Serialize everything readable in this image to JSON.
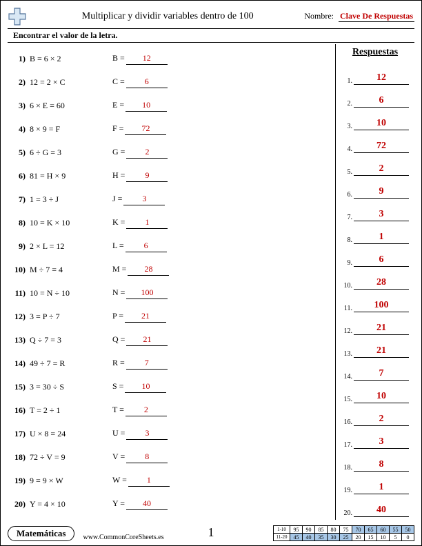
{
  "header": {
    "title": "Multiplicar y dividir variables dentro de 100",
    "name_label": "Nombre:",
    "answer_key": "Clave De Respuestas"
  },
  "instruction": "Encontrar el valor de la letra.",
  "answers_title": "Respuestas",
  "problems": [
    {
      "n": "1)",
      "eq": "B = 6 × 2",
      "var": "B =",
      "ans": "12"
    },
    {
      "n": "2)",
      "eq": "12 = 2 × C",
      "var": "C =",
      "ans": "6"
    },
    {
      "n": "3)",
      "eq": "6 × E = 60",
      "var": "E =",
      "ans": "10"
    },
    {
      "n": "4)",
      "eq": "8 × 9 = F",
      "var": "F =",
      "ans": "72"
    },
    {
      "n": "5)",
      "eq": "6 ÷ G = 3",
      "var": "G =",
      "ans": "2"
    },
    {
      "n": "6)",
      "eq": "81 = H × 9",
      "var": "H =",
      "ans": "9"
    },
    {
      "n": "7)",
      "eq": "1 = 3 ÷ J",
      "var": "J =",
      "ans": "3"
    },
    {
      "n": "8)",
      "eq": "10 = K × 10",
      "var": "K =",
      "ans": "1"
    },
    {
      "n": "9)",
      "eq": "2 × L = 12",
      "var": "L =",
      "ans": "6"
    },
    {
      "n": "10)",
      "eq": "M ÷ 7 = 4",
      "var": "M =",
      "ans": "28"
    },
    {
      "n": "11)",
      "eq": "10 = N ÷ 10",
      "var": "N =",
      "ans": "100"
    },
    {
      "n": "12)",
      "eq": "3 = P ÷ 7",
      "var": "P =",
      "ans": "21"
    },
    {
      "n": "13)",
      "eq": "Q ÷ 7 = 3",
      "var": "Q =",
      "ans": "21"
    },
    {
      "n": "14)",
      "eq": "49 ÷ 7 = R",
      "var": "R =",
      "ans": "7"
    },
    {
      "n": "15)",
      "eq": "3 = 30 ÷ S",
      "var": "S =",
      "ans": "10"
    },
    {
      "n": "16)",
      "eq": "T = 2 ÷ 1",
      "var": "T =",
      "ans": "2"
    },
    {
      "n": "17)",
      "eq": "U × 8 = 24",
      "var": "U =",
      "ans": "3"
    },
    {
      "n": "18)",
      "eq": "72 ÷ V = 9",
      "var": "V =",
      "ans": "8"
    },
    {
      "n": "19)",
      "eq": "9 = 9 × W",
      "var": "W =",
      "ans": "1"
    },
    {
      "n": "20)",
      "eq": "Y = 4 × 10",
      "var": "Y =",
      "ans": "40"
    }
  ],
  "footer": {
    "subject": "Matemáticas",
    "url": "www.CommonCoreSheets.es",
    "page_num": "1",
    "grid": {
      "row1_label": "1-10",
      "row2_label": "11-20",
      "row1": [
        "95",
        "90",
        "85",
        "80",
        "75",
        "70",
        "65",
        "60",
        "55",
        "50"
      ],
      "row2": [
        "45",
        "40",
        "35",
        "30",
        "25",
        "20",
        "15",
        "10",
        "5",
        "0"
      ]
    }
  }
}
